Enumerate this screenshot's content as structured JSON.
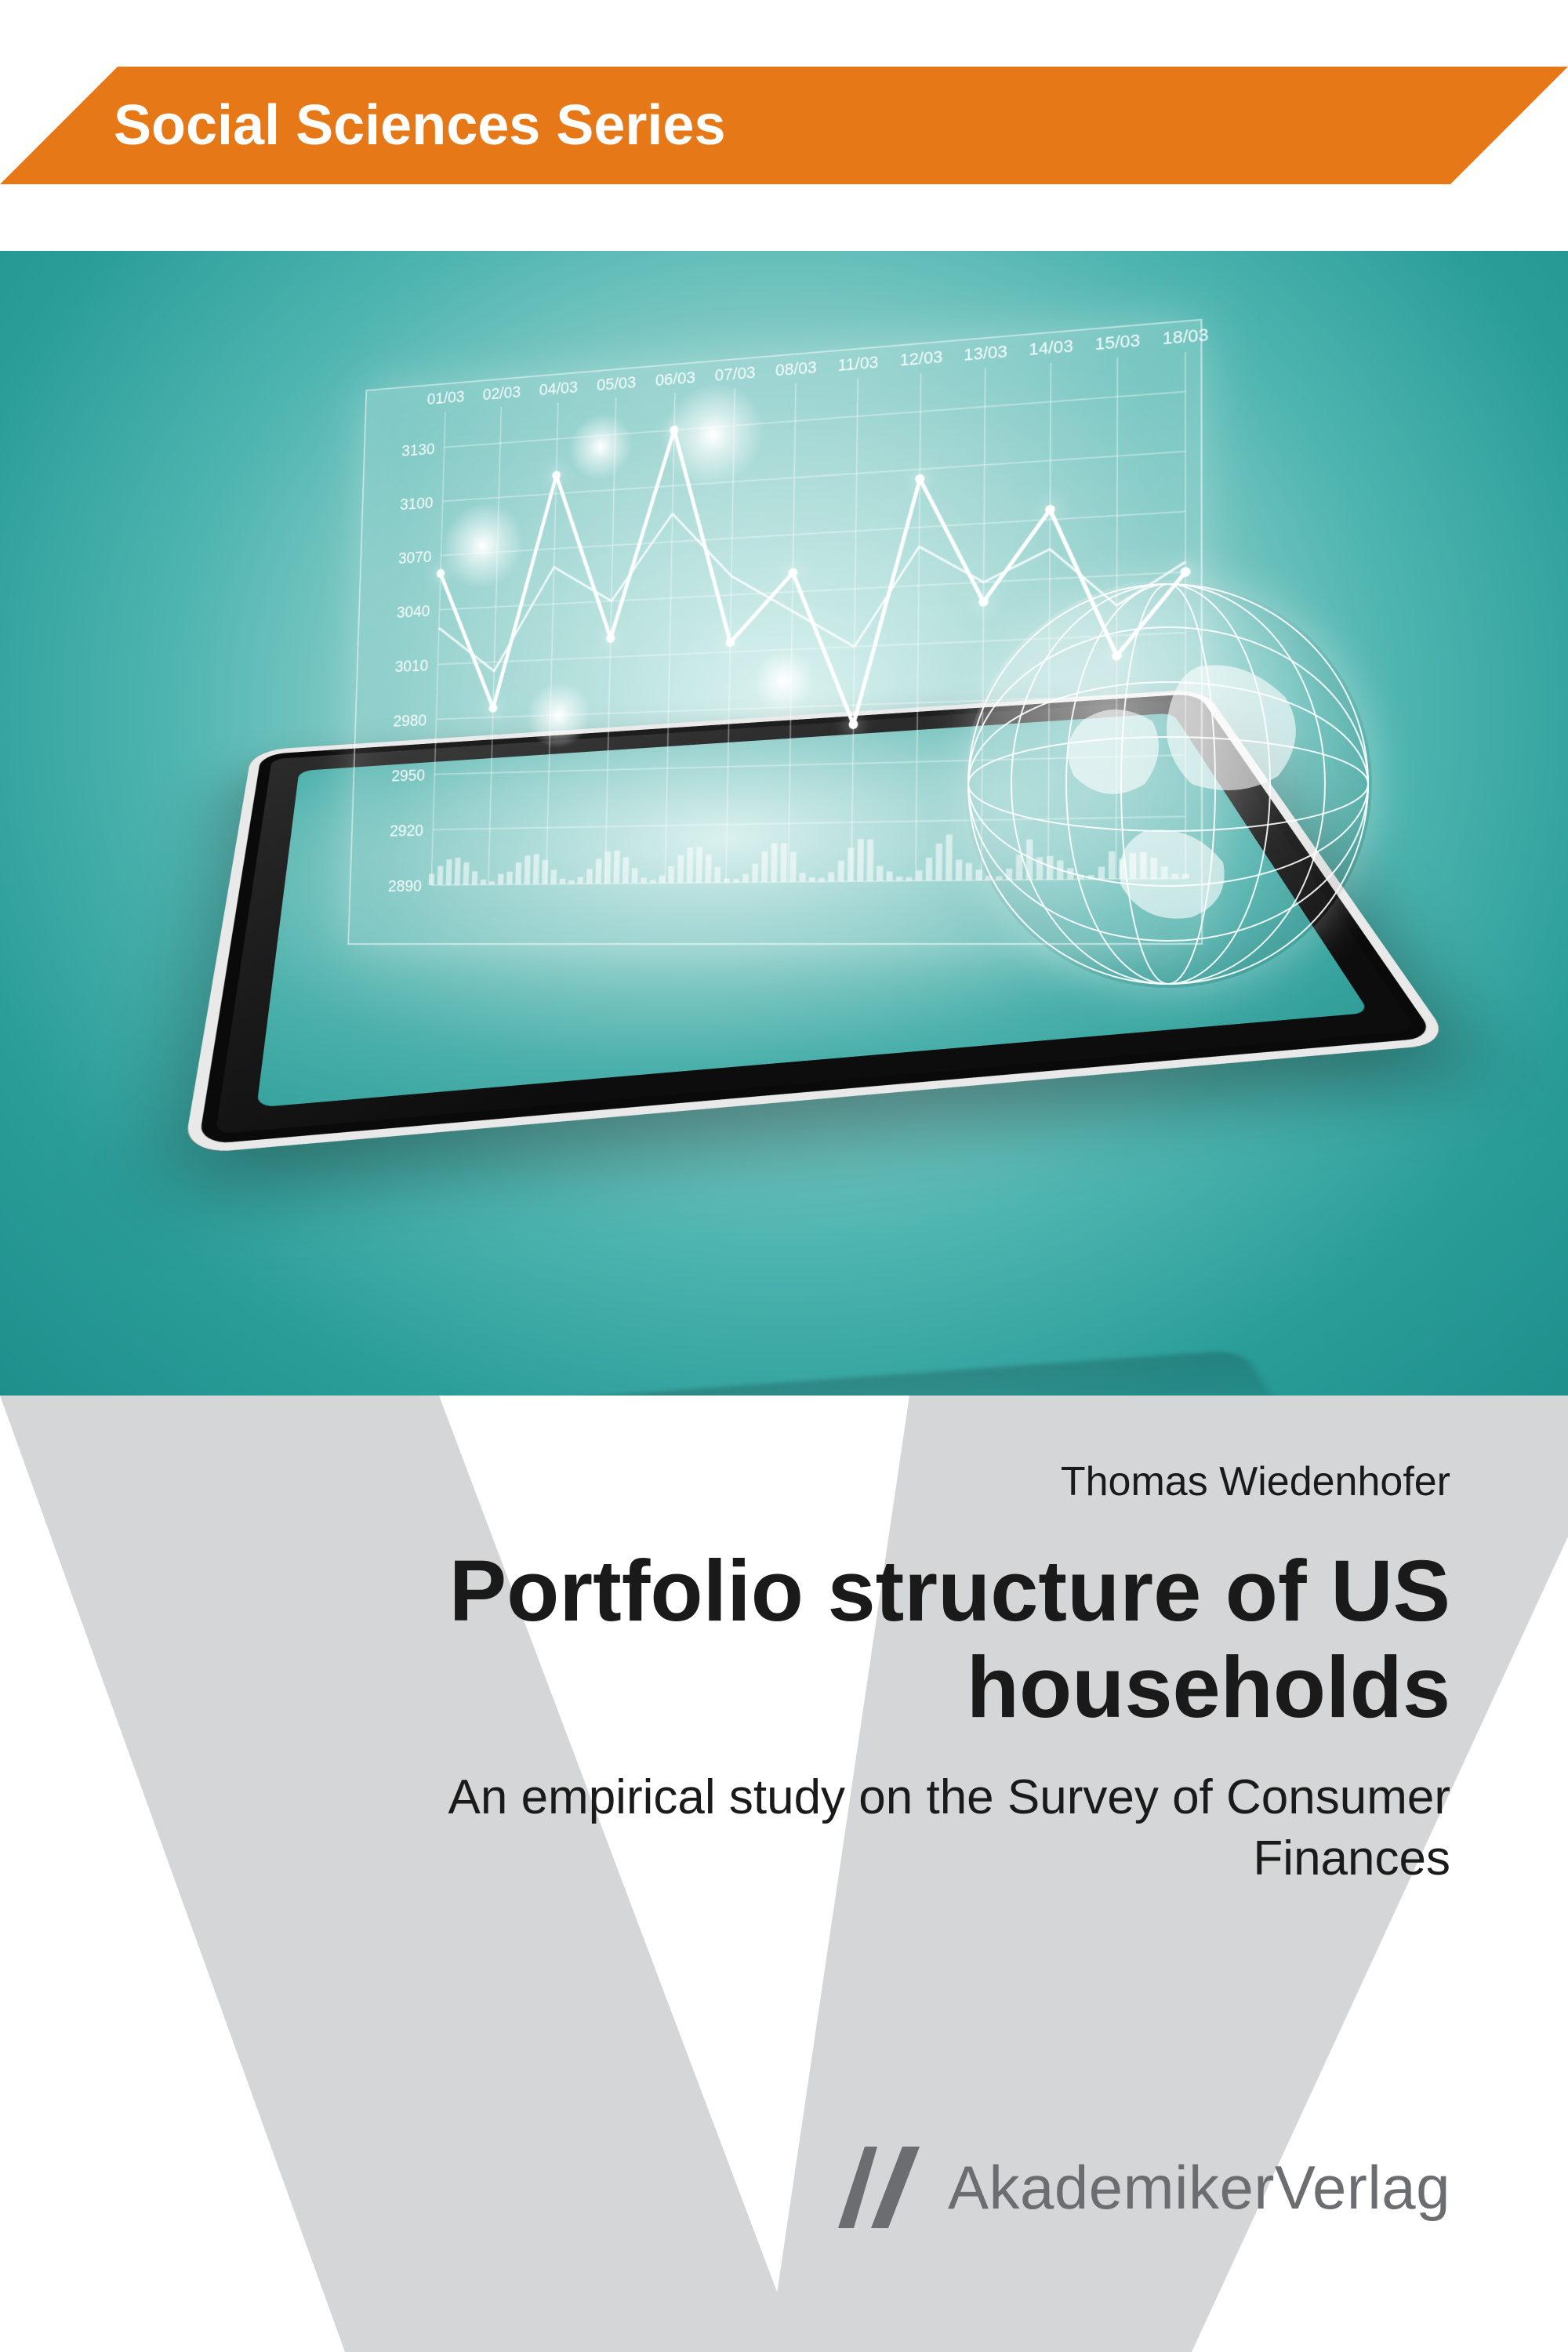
{
  "banner": {
    "series_label": "Social Sciences Series",
    "bg_color": "#e77817",
    "text_color": "#ffffff"
  },
  "hero": {
    "bg_gradient": [
      "#d9f2ef",
      "#4fb5b0",
      "#1f8f8c"
    ],
    "chart": {
      "type": "line",
      "x_labels": [
        "01/03",
        "02/03",
        "04/03",
        "05/03",
        "06/03",
        "07/03",
        "08/03",
        "11/03",
        "12/03",
        "13/03",
        "14/03",
        "15/03",
        "18/03"
      ],
      "y_labels": [
        "2890",
        "2920",
        "2950",
        "2980",
        "3010",
        "3040",
        "3070",
        "3100",
        "3130"
      ],
      "ylim": [
        2890,
        3150
      ],
      "ytick_step": 30,
      "series_main": [
        3060,
        2985,
        3110,
        3020,
        3130,
        3015,
        3050,
        2970,
        3095,
        3030,
        3075,
        3000,
        3040
      ],
      "series_thin": [
        3030,
        3005,
        3060,
        3040,
        3085,
        3050,
        3030,
        3010,
        3060,
        3040,
        3055,
        3025,
        3045
      ],
      "line_color": "#ffffff",
      "grid_color": "rgba(255,255,255,0.45)",
      "bars": {
        "count": 80,
        "min": 4,
        "max": 60,
        "color": "rgba(255,255,255,0.55)"
      },
      "panel_border": "rgba(255,255,255,0.55)"
    },
    "globe": {
      "stroke": "rgba(255,255,255,0.9)",
      "fill": "rgba(255,255,255,0.55)"
    }
  },
  "watermark": {
    "letter": "V",
    "color": "#d5d6d7"
  },
  "text": {
    "author": "Thomas Wiedenhofer",
    "title_line1": "Portfolio structure of US",
    "title_line2": "households",
    "subtitle_line1": "An empirical study on the Survey of Consumer",
    "subtitle_line2": "Finances",
    "color": "#1a1a1a",
    "title_fontsize": 110,
    "author_fontsize": 52,
    "subtitle_fontsize": 62
  },
  "publisher": {
    "name_light": "Akademiker",
    "name_rest": "Verlag",
    "color": "#6c6d70"
  }
}
